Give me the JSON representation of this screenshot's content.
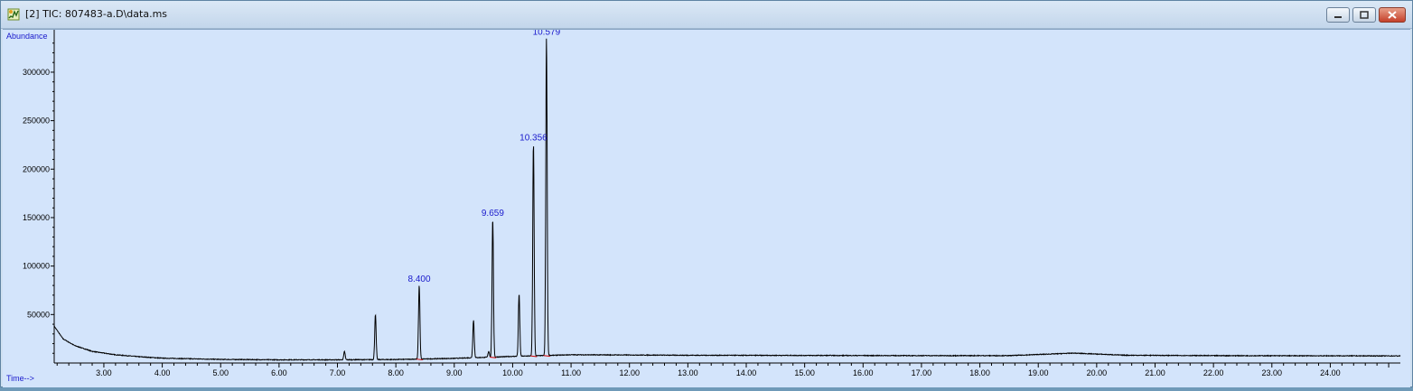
{
  "window": {
    "title": "[2] TIC: 807483-a.D\\data.ms",
    "icons": [
      "chromatogram-app-icon",
      "minimize-icon",
      "maximize-icon",
      "close-icon"
    ]
  },
  "colors": {
    "plot_background": "#d3e4fb",
    "trace": "#000000",
    "integration_baseline": "#cc0000",
    "label_text": "#1a1acc"
  },
  "chart_data": {
    "type": "line",
    "ylabel": "Abundance",
    "xlabel": "Time-->",
    "xlim": [
      2.15,
      25.2
    ],
    "ylim": [
      0,
      340000
    ],
    "x_ticks": [
      3.0,
      4.0,
      5.0,
      6.0,
      7.0,
      8.0,
      9.0,
      10.0,
      11.0,
      12.0,
      13.0,
      14.0,
      15.0,
      16.0,
      17.0,
      18.0,
      19.0,
      20.0,
      21.0,
      22.0,
      23.0,
      24.0
    ],
    "x_tick_labels": [
      "3.00",
      "4.00",
      "5.00",
      "6.00",
      "7.00",
      "8.00",
      "9.00",
      "10.00",
      "11.00",
      "12.00",
      "13.00",
      "14.00",
      "15.00",
      "16.00",
      "17.00",
      "18.00",
      "19.00",
      "20.00",
      "21.00",
      "22.00",
      "23.00",
      "24.00"
    ],
    "y_ticks": [
      50000,
      100000,
      150000,
      200000,
      250000,
      300000
    ],
    "y_tick_labels": [
      "50000",
      "100000",
      "150000",
      "200000",
      "250000",
      "300000"
    ],
    "baseline": {
      "x": [
        2.15,
        2.3,
        2.5,
        2.8,
        3.2,
        3.6,
        4.0,
        5.0,
        6.0,
        7.0,
        8.0,
        9.0,
        10.0,
        11.0,
        13.0,
        15.0,
        17.0,
        18.5,
        19.6,
        20.5,
        22.0,
        25.2
      ],
      "y": [
        38000,
        25000,
        18000,
        12000,
        8500,
        6500,
        5000,
        3700,
        3300,
        3300,
        3600,
        4800,
        6800,
        8500,
        8000,
        7800,
        7600,
        7600,
        10200,
        8000,
        7600,
        7300
      ]
    },
    "peaks": [
      {
        "rt": 7.12,
        "height": 12000,
        "label": ""
      },
      {
        "rt": 7.65,
        "height": 50000,
        "label": ""
      },
      {
        "rt": 8.4,
        "height": 80000,
        "label": "8.400"
      },
      {
        "rt": 9.33,
        "height": 44000,
        "label": ""
      },
      {
        "rt": 9.59,
        "height": 12000,
        "label": ""
      },
      {
        "rt": 9.659,
        "height": 148000,
        "label": "9.659"
      },
      {
        "rt": 10.11,
        "height": 71000,
        "label": ""
      },
      {
        "rt": 10.356,
        "height": 226000,
        "label": "10.356"
      },
      {
        "rt": 10.579,
        "height": 335000,
        "label": "10.579"
      }
    ]
  }
}
